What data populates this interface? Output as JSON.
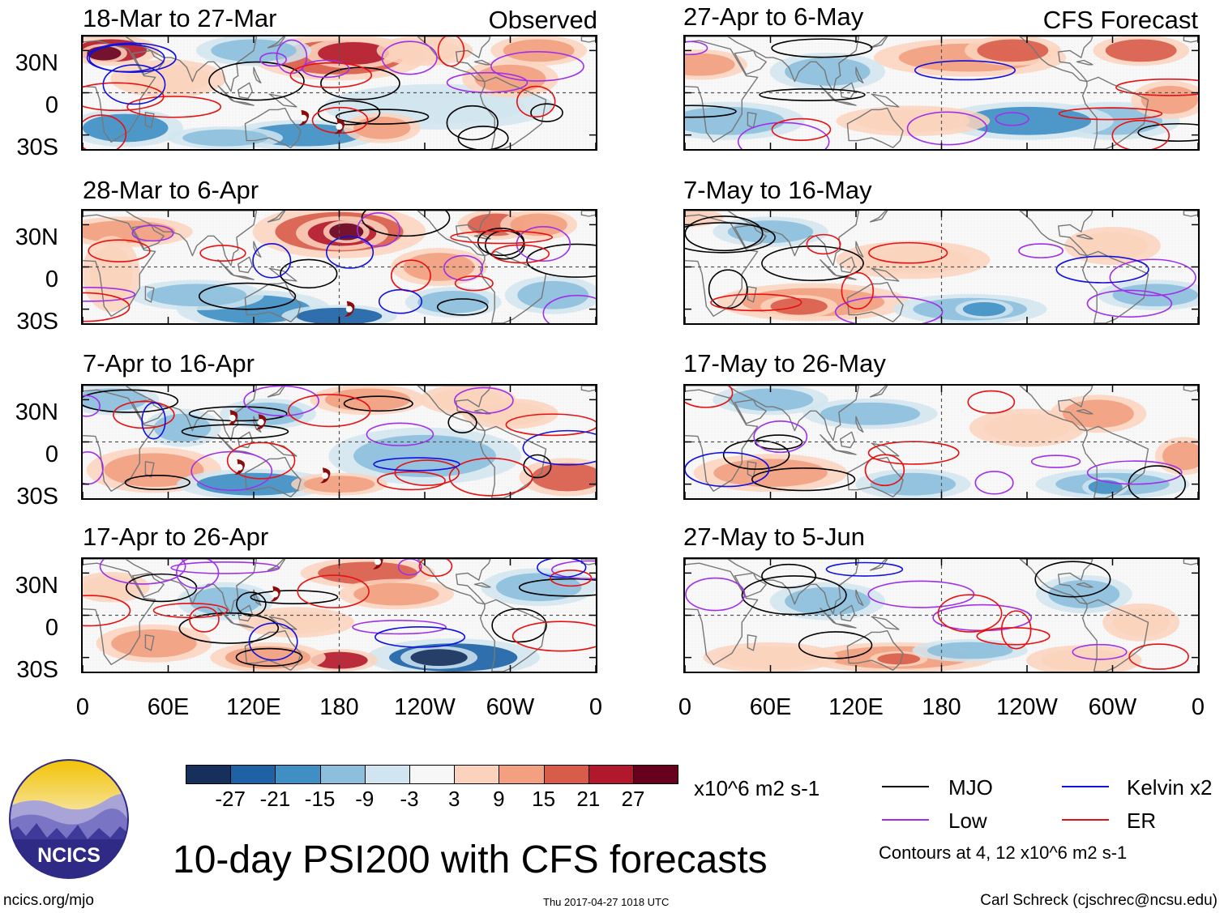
{
  "panels": [
    {
      "title": "18-Mar to 27-Mar",
      "header": "Observed",
      "source": "observed"
    },
    {
      "title": "28-Mar to 6-Apr",
      "source": "observed"
    },
    {
      "title": "7-Apr to 16-Apr",
      "source": "observed"
    },
    {
      "title": "17-Apr to 26-Apr",
      "source": "observed"
    },
    {
      "title": "27-Apr to 6-May",
      "header": "CFS Forecast",
      "source": "forecast"
    },
    {
      "title": "7-May to 16-May",
      "source": "forecast"
    },
    {
      "title": "17-May to 26-May",
      "source": "forecast"
    },
    {
      "title": "27-May to 5-Jun",
      "source": "forecast"
    }
  ],
  "y_axis_labels": [
    "30N",
    "0",
    "30S"
  ],
  "x_axis_labels": [
    "0",
    "60E",
    "120E",
    "180",
    "120W",
    "60W",
    "0"
  ],
  "colorbar": {
    "ticks": [
      "-27",
      "-21",
      "-15",
      "-9",
      "-3",
      "3",
      "9",
      "15",
      "21",
      "27"
    ],
    "colors": [
      "#162f5b",
      "#1e62a6",
      "#3f8fc4",
      "#8dbfdd",
      "#d1e5f0",
      "#f7f7f7",
      "#fbd3bd",
      "#f2a07f",
      "#d85c4a",
      "#b2182b",
      "#67001f"
    ],
    "units": "x10^6 m2 s-1"
  },
  "legend": {
    "items": [
      {
        "label": "MJO",
        "color": "#000000"
      },
      {
        "label": "Kelvin x2",
        "color": "#1010e0"
      },
      {
        "label": "Low",
        "color": "#a030e8"
      },
      {
        "label": "ER",
        "color": "#e81010"
      }
    ],
    "contours_note": "Contours at 4, 12 x10^6 m2 s-1"
  },
  "logo": {
    "text": "NCICS"
  },
  "title": "10-day PSI200 with CFS forecasts",
  "footer": {
    "url": "ncics.org/mjo",
    "timestamp": "Thu 2017-04-27 1018 UTC",
    "credit": "Carl Schreck (cjschrec@ncsu.edu)"
  },
  "cyclone_markers": [
    {
      "panel": 0,
      "lon": 155,
      "lat": -18
    },
    {
      "panel": 0,
      "lon": 180,
      "lat": -24
    },
    {
      "panel": 1,
      "lon": 187,
      "lat": -30
    },
    {
      "panel": 2,
      "lon": 105,
      "lat": 17
    },
    {
      "panel": 2,
      "lon": 125,
      "lat": 14
    },
    {
      "panel": 2,
      "lon": 110,
      "lat": -18
    },
    {
      "panel": 2,
      "lon": 170,
      "lat": -24
    },
    {
      "panel": 3,
      "lon": 135,
      "lat": 15
    },
    {
      "panel": 3,
      "lon": 207,
      "lat": 38
    }
  ]
}
